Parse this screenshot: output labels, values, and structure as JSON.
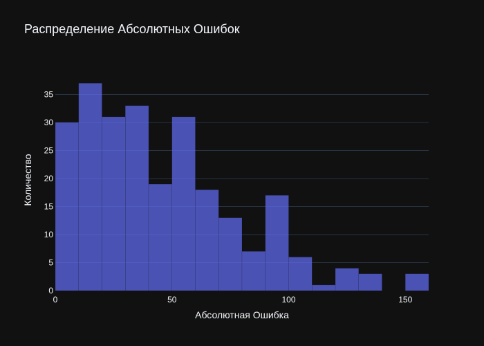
{
  "chart_data": {
    "type": "bar",
    "subtype": "histogram",
    "title": "Распределение Абсолютных Ошибок",
    "xlabel": "Абсолютная Ошибка",
    "ylabel": "Количество",
    "bin_width": 10,
    "bins": [
      {
        "x0": 0,
        "x1": 10,
        "count": 30
      },
      {
        "x0": 10,
        "x1": 20,
        "count": 37
      },
      {
        "x0": 20,
        "x1": 30,
        "count": 31
      },
      {
        "x0": 30,
        "x1": 40,
        "count": 33
      },
      {
        "x0": 40,
        "x1": 50,
        "count": 19
      },
      {
        "x0": 50,
        "x1": 60,
        "count": 31
      },
      {
        "x0": 60,
        "x1": 70,
        "count": 18
      },
      {
        "x0": 70,
        "x1": 80,
        "count": 13
      },
      {
        "x0": 80,
        "x1": 90,
        "count": 7
      },
      {
        "x0": 90,
        "x1": 100,
        "count": 17
      },
      {
        "x0": 100,
        "x1": 110,
        "count": 6
      },
      {
        "x0": 110,
        "x1": 120,
        "count": 1
      },
      {
        "x0": 120,
        "x1": 130,
        "count": 4
      },
      {
        "x0": 130,
        "x1": 140,
        "count": 3
      },
      {
        "x0": 140,
        "x1": 150,
        "count": 0
      },
      {
        "x0": 150,
        "x1": 160,
        "count": 3
      }
    ],
    "xlim": [
      0,
      160
    ],
    "ylim": [
      0,
      39.5
    ],
    "x_ticks": [
      0,
      50,
      100,
      150
    ],
    "y_ticks": [
      0,
      5,
      10,
      15,
      20,
      25,
      30,
      35
    ],
    "grid": true,
    "legend": false,
    "colors": {
      "background": "#111111",
      "bar": "#636efa",
      "grid": "#283442",
      "text": "#f2f5fa"
    }
  }
}
